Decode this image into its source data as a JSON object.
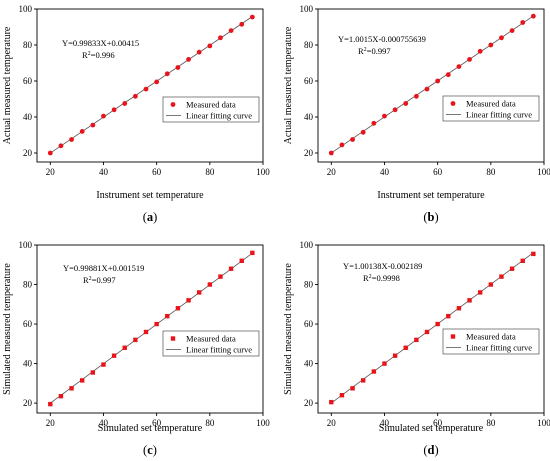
{
  "colors": {
    "points": "#e8141b",
    "fit_line": "#555555",
    "frame": "#000000"
  },
  "chart_data": [
    {
      "type": "scatter",
      "panel_label": "a",
      "xlabel": "Instrument set temperature",
      "ylabel": "Actual measured temperature",
      "xlim": [
        15,
        100
      ],
      "ylim": [
        15,
        100
      ],
      "xticks": [
        20,
        40,
        60,
        80,
        100
      ],
      "yticks": [
        20,
        40,
        60,
        80,
        100
      ],
      "equation": "Y=0.99833X+0.00415",
      "r2_value": "=0.996",
      "fit": {
        "slope": 0.99833,
        "intercept": 0.00415
      },
      "legend": {
        "position": "middle-right",
        "entries": [
          "Measured data",
          "Linear fitting curve"
        ]
      },
      "marker": "circle",
      "series": [
        {
          "name": "Measured data",
          "x": [
            20,
            24,
            28,
            32,
            36,
            40,
            44,
            48,
            52,
            56,
            60,
            64,
            68,
            72,
            76,
            80,
            84,
            88,
            92,
            96
          ],
          "y": [
            20,
            24,
            27.5,
            32,
            35.5,
            40.5,
            44,
            47.5,
            51.5,
            55.5,
            59.5,
            64,
            67.5,
            72,
            76,
            79.5,
            84,
            88,
            91.5,
            95.5
          ]
        }
      ]
    },
    {
      "type": "scatter",
      "panel_label": "b",
      "xlabel": "Instrument set temperature",
      "ylabel": "Actual measured temperature",
      "xlim": [
        15,
        100
      ],
      "ylim": [
        15,
        100
      ],
      "xticks": [
        20,
        40,
        60,
        80,
        100
      ],
      "yticks": [
        20,
        40,
        60,
        80,
        100
      ],
      "equation": "Y=1.0015X-0.000755639",
      "r2_value": "=0.997",
      "fit": {
        "slope": 1.0015,
        "intercept": -0.000755639
      },
      "legend": {
        "position": "middle-right",
        "entries": [
          "Measured data",
          "Linear fitting curve"
        ]
      },
      "marker": "circle",
      "series": [
        {
          "name": "Measured data",
          "x": [
            20,
            24,
            28,
            32,
            36,
            40,
            44,
            48,
            52,
            56,
            60,
            64,
            68,
            72,
            76,
            80,
            84,
            88,
            92,
            96
          ],
          "y": [
            20,
            24.5,
            27.5,
            31.5,
            36.5,
            40.5,
            44,
            47.5,
            51.5,
            55.5,
            60,
            63.5,
            68,
            72,
            76.5,
            80,
            84,
            88,
            92.5,
            96
          ]
        }
      ]
    },
    {
      "type": "scatter",
      "panel_label": "c",
      "xlabel": "Simulated set temperature",
      "ylabel": "Simulated measured temperature",
      "xlim": [
        15,
        100
      ],
      "ylim": [
        15,
        100
      ],
      "xticks": [
        20,
        40,
        60,
        80,
        100
      ],
      "yticks": [
        20,
        40,
        60,
        80,
        100
      ],
      "equation": "Y=0.99881X+0.001519",
      "r2_value": "=0.997",
      "fit": {
        "slope": 0.99881,
        "intercept": 0.001519
      },
      "legend": {
        "position": "middle-right",
        "entries": [
          "Measured data",
          "Linear fitting curve"
        ]
      },
      "marker": "square",
      "series": [
        {
          "name": "Measured data",
          "x": [
            20,
            24,
            28,
            32,
            36,
            40,
            44,
            48,
            52,
            56,
            60,
            64,
            68,
            72,
            76,
            80,
            84,
            88,
            92,
            96
          ],
          "y": [
            19.5,
            23.5,
            27.5,
            31.5,
            35.5,
            39.5,
            44,
            48,
            52,
            56,
            60,
            64,
            68,
            72,
            76,
            80,
            84,
            88,
            92,
            96
          ]
        }
      ]
    },
    {
      "type": "scatter",
      "panel_label": "d",
      "xlabel": "Simulated set temperature",
      "ylabel": "Simulated measured temperature",
      "xlim": [
        15,
        100
      ],
      "ylim": [
        15,
        100
      ],
      "xticks": [
        20,
        40,
        60,
        80,
        100
      ],
      "yticks": [
        20,
        40,
        60,
        80,
        100
      ],
      "equation": "Y=1.00138X-0.002189",
      "r2_value": "=0.9998",
      "fit": {
        "slope": 1.00138,
        "intercept": -0.002189
      },
      "legend": {
        "position": "middle-right",
        "entries": [
          "Measured data",
          "Linear fitting curve"
        ]
      },
      "marker": "square",
      "series": [
        {
          "name": "Measured data",
          "x": [
            20,
            24,
            28,
            32,
            36,
            40,
            44,
            48,
            52,
            56,
            60,
            64,
            68,
            72,
            76,
            80,
            84,
            88,
            92,
            96
          ],
          "y": [
            20.5,
            24,
            27.5,
            31.5,
            36,
            40,
            44,
            48,
            52,
            56,
            60,
            64,
            68,
            72,
            76,
            80,
            84,
            88,
            92,
            95.5
          ]
        }
      ]
    }
  ]
}
